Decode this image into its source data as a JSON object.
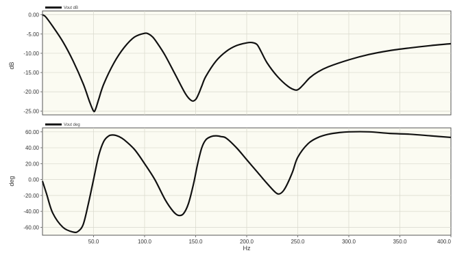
{
  "chart_data": [
    {
      "type": "line",
      "ylabel": "dB",
      "xlabel": "",
      "xlim": [
        0,
        400
      ],
      "ylim": [
        -26,
        1
      ],
      "yticks": [
        0,
        -5,
        -10,
        -15,
        -20,
        -25
      ],
      "ytick_labels": [
        "0.00",
        "-5.00",
        "-10.00",
        "-15.00",
        "-20.00",
        "-25.00"
      ],
      "xticks": [],
      "xtick_labels": [],
      "grid": true,
      "legend_position": "top-left",
      "line_color": "#111111",
      "series": [
        {
          "name": "Vout dB",
          "x": [
            0,
            3,
            10,
            20,
            30,
            40,
            46,
            50,
            52,
            55,
            60,
            70,
            80,
            90,
            100,
            104,
            108,
            112,
            120,
            130,
            140,
            146,
            150,
            153,
            156,
            160,
            170,
            180,
            190,
            200,
            205,
            210,
            214,
            220,
            230,
            240,
            247,
            251,
            256,
            262,
            270,
            280,
            300,
            320,
            340,
            360,
            380,
            400
          ],
          "y": [
            0,
            -0.5,
            -3,
            -7,
            -12,
            -18,
            -22.5,
            -25,
            -24.5,
            -22,
            -18,
            -12.5,
            -8.5,
            -5.8,
            -4.8,
            -5.0,
            -5.8,
            -7.2,
            -10.5,
            -15.5,
            -20.5,
            -22.3,
            -22,
            -20.5,
            -18.5,
            -16,
            -12,
            -9.5,
            -8,
            -7.3,
            -7.2,
            -7.7,
            -9.5,
            -12.5,
            -16,
            -18.5,
            -19.5,
            -19.3,
            -18,
            -16.3,
            -14.8,
            -13.5,
            -11.7,
            -10.3,
            -9.3,
            -8.6,
            -8.0,
            -7.5
          ]
        }
      ]
    },
    {
      "type": "line",
      "ylabel": "deg",
      "xlabel": "Hz",
      "xlim": [
        0,
        400
      ],
      "ylim": [
        -70,
        65
      ],
      "yticks": [
        60,
        40,
        20,
        0,
        -20,
        -40,
        -60
      ],
      "ytick_labels": [
        "60.00",
        "40.00",
        "20.00",
        "0.00",
        "-20.00",
        "-40.00",
        "-60.00"
      ],
      "xticks": [
        50,
        100,
        150,
        200,
        250,
        300,
        350,
        400
      ],
      "xtick_labels": [
        "50.0",
        "100.0",
        "150.0",
        "200.0",
        "250.0",
        "300.0",
        "350.0",
        "400.0"
      ],
      "grid": true,
      "legend_position": "top-left",
      "line_color": "#111111",
      "series": [
        {
          "name": "Vout deg",
          "x": [
            0,
            4,
            10,
            20,
            30,
            35,
            40,
            45,
            50,
            55,
            60,
            65,
            70,
            75,
            80,
            90,
            100,
            110,
            120,
            128,
            133,
            138,
            143,
            148,
            152,
            156,
            160,
            165,
            170,
            175,
            180,
            190,
            200,
            210,
            220,
            228,
            232,
            236,
            240,
            245,
            250,
            260,
            270,
            280,
            290,
            300,
            320,
            340,
            360,
            380,
            400
          ],
          "y": [
            -2,
            -18,
            -42,
            -60,
            -66,
            -65,
            -56,
            -30,
            0,
            30,
            48,
            55,
            56,
            54,
            50,
            38,
            20,
            0,
            -25,
            -40,
            -45,
            -43,
            -30,
            -5,
            20,
            40,
            50,
            54,
            55,
            54,
            52,
            40,
            25,
            10,
            -5,
            -16,
            -18,
            -14,
            -5,
            10,
            28,
            45,
            53,
            57,
            59,
            60,
            60,
            58,
            57,
            55,
            53
          ]
        }
      ]
    }
  ]
}
